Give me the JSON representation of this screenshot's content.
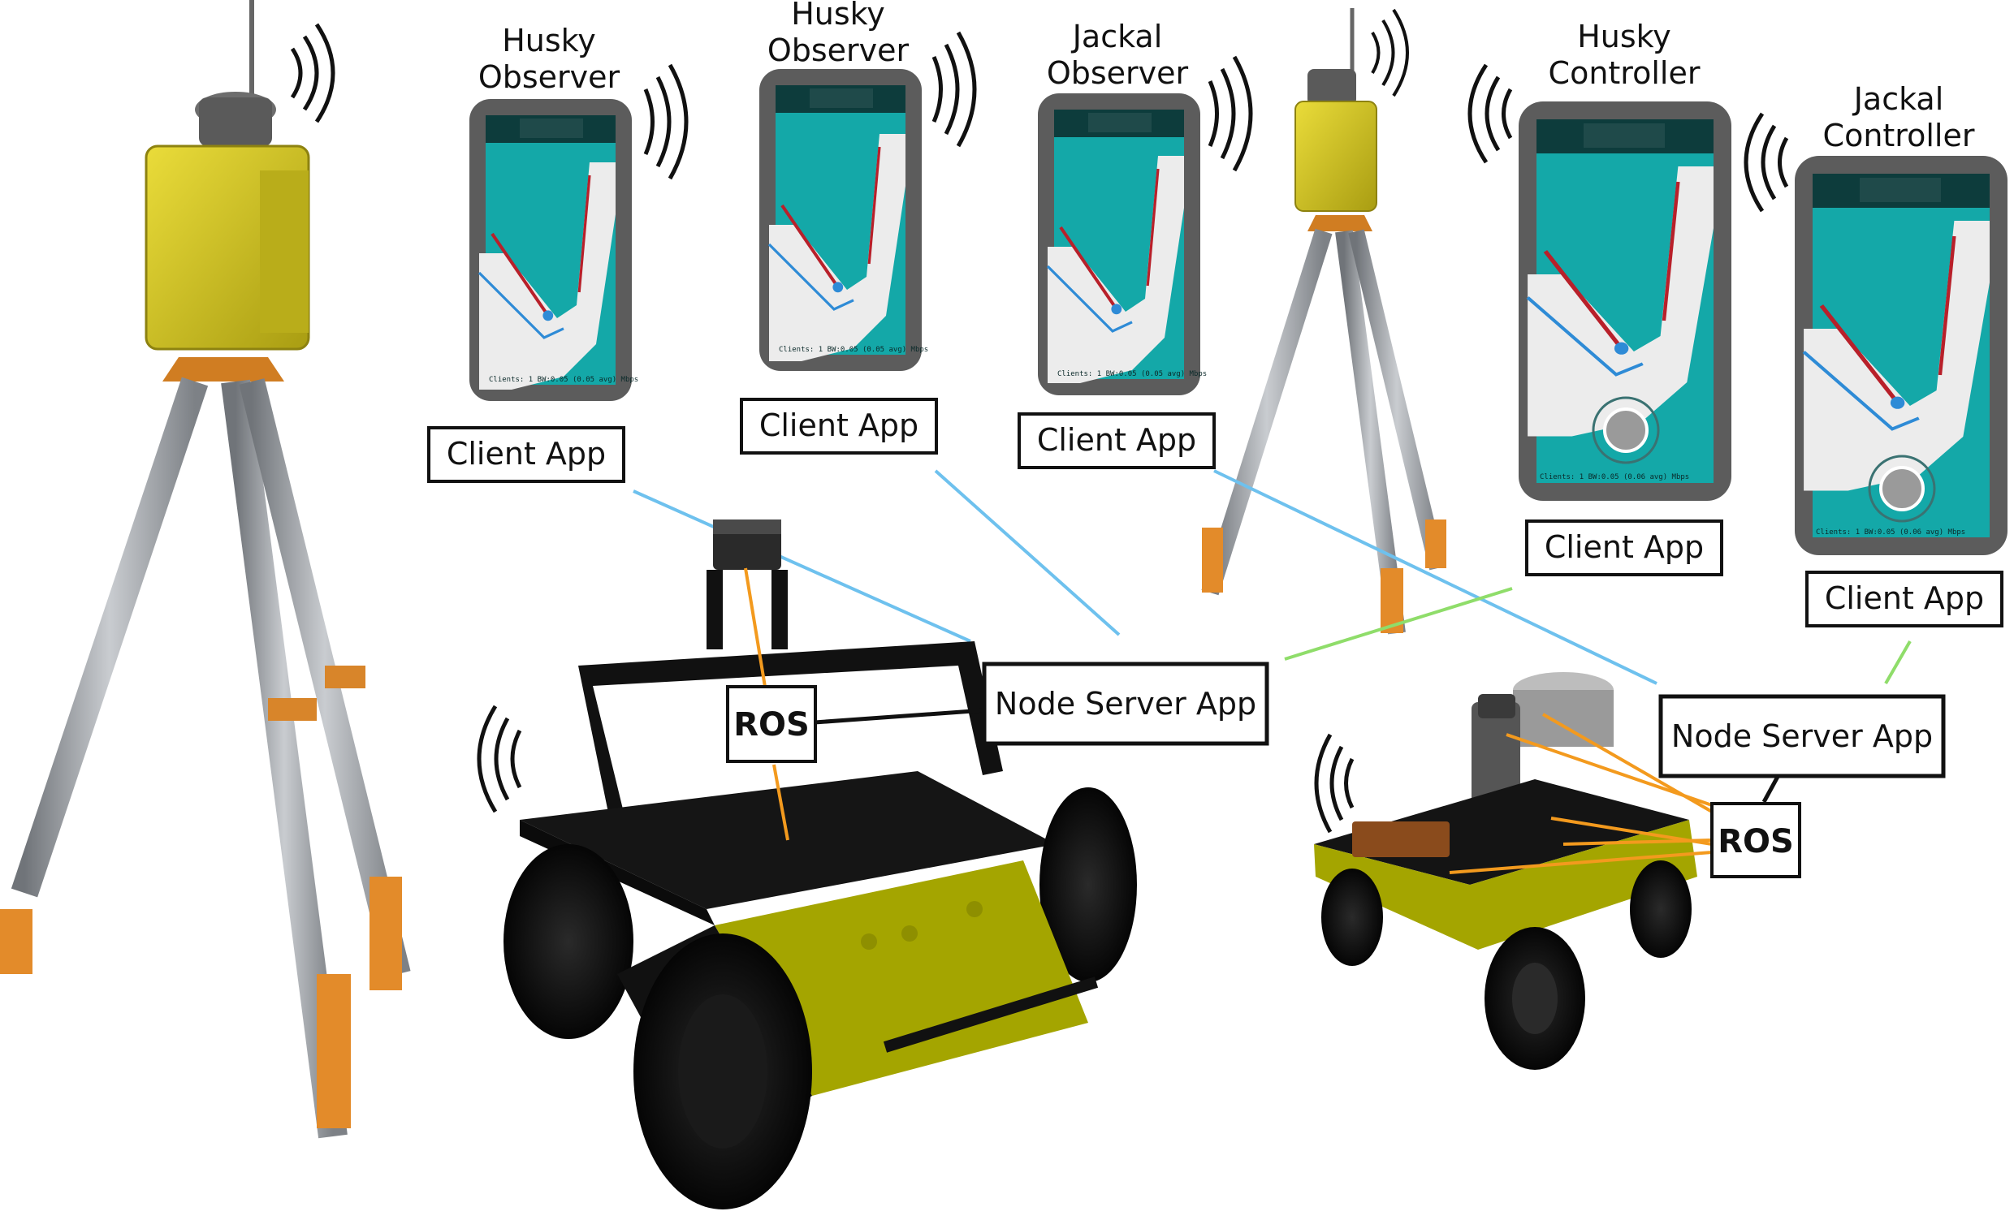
{
  "devices": [
    {
      "id": "husky-observer",
      "title_lines": [
        "Husky",
        "Observer"
      ],
      "app_label": "Client App",
      "status": "Clients: 1   BW:0.05 (0.05 avg) Mbps"
    },
    {
      "id": "husky-observer-2",
      "title_lines": [
        "Husky",
        "Observer"
      ],
      "app_label": "Client App",
      "status": "Clients: 1   BW:0.05 (0.05 avg) Mbps"
    },
    {
      "id": "jackal-observer",
      "title_lines": [
        "Jackal",
        "Observer"
      ],
      "app_label": "Client App",
      "status": "Clients: 1   BW:0.05 (0.05 avg) Mbps"
    },
    {
      "id": "husky-controller",
      "title_lines": [
        "Husky",
        "Controller"
      ],
      "app_label": "Client App",
      "status": "Clients: 1   BW:0.05 (0.06 avg) Mbps"
    },
    {
      "id": "jackal-controller",
      "title_lines": [
        "Jackal",
        "Controller"
      ],
      "app_label": "Client App",
      "status": "Clients: 1   BW:0.05 (0.06 avg) Mbps"
    }
  ],
  "servers": [
    {
      "id": "husky-server",
      "label": "Node Server App",
      "ros_label": "ROS"
    },
    {
      "id": "jackal-server",
      "label": "Node Server App",
      "ros_label": "ROS"
    }
  ],
  "colors": {
    "observer_link": "#6ec1ee",
    "controller_link": "#8fdd6a",
    "ros_link": "#f39a1e",
    "screen_bg": "#14a8a8",
    "map_area": "#ececec",
    "robot_body": "#111111",
    "robot_accent": "#a4a500",
    "gps_case": "#d8c92a",
    "tripod_leg": "#9a9ea3",
    "tripod_joint": "#e08a25"
  }
}
